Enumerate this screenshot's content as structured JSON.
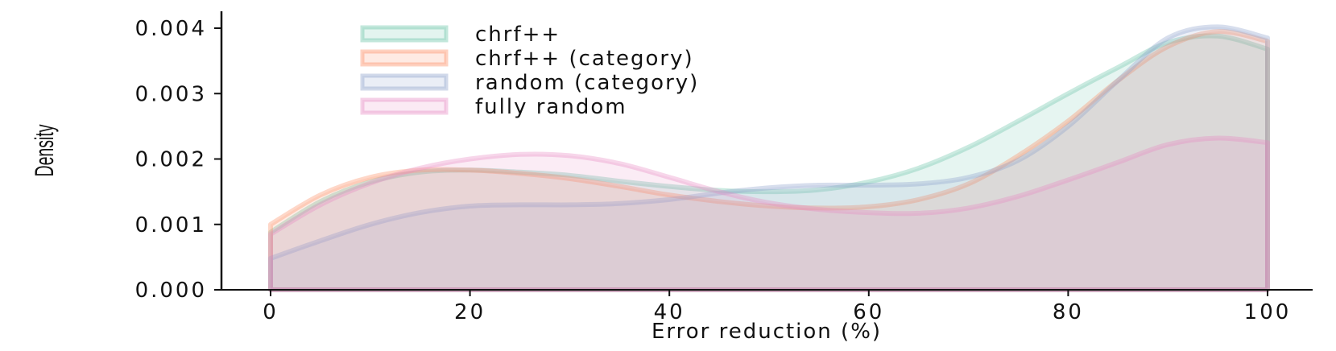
{
  "chart_data": {
    "type": "area",
    "title": "",
    "xlabel": "Error reduction (%)",
    "ylabel": "Density",
    "xlim": [
      -6,
      105
    ],
    "ylim": [
      0,
      0.0043
    ],
    "xticks": [
      {
        "value": 0,
        "label": "0"
      },
      {
        "value": 20,
        "label": "20"
      },
      {
        "value": 40,
        "label": "40"
      },
      {
        "value": 60,
        "label": "60"
      },
      {
        "value": 80,
        "label": "80"
      },
      {
        "value": 100,
        "label": "100"
      }
    ],
    "yticks": [
      {
        "value": 0.0,
        "label": "0.000"
      },
      {
        "value": 0.001,
        "label": "0.001"
      },
      {
        "value": 0.002,
        "label": "0.002"
      },
      {
        "value": 0.003,
        "label": "0.003"
      },
      {
        "value": 0.004,
        "label": "0.004"
      }
    ],
    "grid": false,
    "legend_position": "top-left",
    "series": [
      {
        "name": "chrf++",
        "color": "#66c2a5",
        "points": [
          [
            0,
            0.00088
          ],
          [
            5,
            0.00135
          ],
          [
            10,
            0.00165
          ],
          [
            15,
            0.0018
          ],
          [
            20,
            0.00183
          ],
          [
            25,
            0.0018
          ],
          [
            30,
            0.00175
          ],
          [
            35,
            0.00166
          ],
          [
            40,
            0.00158
          ],
          [
            45,
            0.00152
          ],
          [
            50,
            0.0015
          ],
          [
            55,
            0.00153
          ],
          [
            60,
            0.00165
          ],
          [
            65,
            0.00186
          ],
          [
            70,
            0.00218
          ],
          [
            75,
            0.00258
          ],
          [
            80,
            0.003
          ],
          [
            85,
            0.0034
          ],
          [
            90,
            0.00378
          ],
          [
            95,
            0.00388
          ],
          [
            100,
            0.00368
          ]
        ]
      },
      {
        "name": "chrf++ (category)",
        "color": "#fc8d62",
        "points": [
          [
            0,
            0.001
          ],
          [
            5,
            0.00145
          ],
          [
            10,
            0.00172
          ],
          [
            15,
            0.00183
          ],
          [
            20,
            0.00183
          ],
          [
            25,
            0.00178
          ],
          [
            30,
            0.0017
          ],
          [
            35,
            0.00158
          ],
          [
            40,
            0.00145
          ],
          [
            45,
            0.00135
          ],
          [
            50,
            0.00128
          ],
          [
            55,
            0.00125
          ],
          [
            60,
            0.00127
          ],
          [
            65,
            0.00138
          ],
          [
            70,
            0.00162
          ],
          [
            75,
            0.00205
          ],
          [
            80,
            0.00258
          ],
          [
            85,
            0.0032
          ],
          [
            90,
            0.00372
          ],
          [
            95,
            0.00395
          ],
          [
            100,
            0.0038
          ]
        ]
      },
      {
        "name": "random (category)",
        "color": "#8da0cb",
        "points": [
          [
            0,
            0.00048
          ],
          [
            5,
            0.00075
          ],
          [
            10,
            0.001
          ],
          [
            15,
            0.00118
          ],
          [
            20,
            0.00128
          ],
          [
            25,
            0.0013
          ],
          [
            30,
            0.0013
          ],
          [
            35,
            0.00132
          ],
          [
            40,
            0.00138
          ],
          [
            45,
            0.00148
          ],
          [
            50,
            0.00156
          ],
          [
            55,
            0.0016
          ],
          [
            60,
            0.0016
          ],
          [
            65,
            0.00162
          ],
          [
            70,
            0.00172
          ],
          [
            75,
            0.00198
          ],
          [
            80,
            0.0025
          ],
          [
            85,
            0.0032
          ],
          [
            90,
            0.00385
          ],
          [
            95,
            0.00402
          ],
          [
            100,
            0.00385
          ]
        ]
      },
      {
        "name": "fully random",
        "color": "#e78ac3",
        "points": [
          [
            0,
            0.00085
          ],
          [
            5,
            0.0013
          ],
          [
            10,
            0.00163
          ],
          [
            15,
            0.00186
          ],
          [
            20,
            0.002
          ],
          [
            25,
            0.00207
          ],
          [
            30,
            0.00205
          ],
          [
            35,
            0.00193
          ],
          [
            40,
            0.00172
          ],
          [
            45,
            0.0015
          ],
          [
            50,
            0.00133
          ],
          [
            55,
            0.00123
          ],
          [
            60,
            0.00118
          ],
          [
            65,
            0.00117
          ],
          [
            70,
            0.00125
          ],
          [
            75,
            0.00143
          ],
          [
            80,
            0.00168
          ],
          [
            85,
            0.00195
          ],
          [
            90,
            0.00222
          ],
          [
            95,
            0.00232
          ],
          [
            100,
            0.00225
          ]
        ]
      }
    ]
  }
}
